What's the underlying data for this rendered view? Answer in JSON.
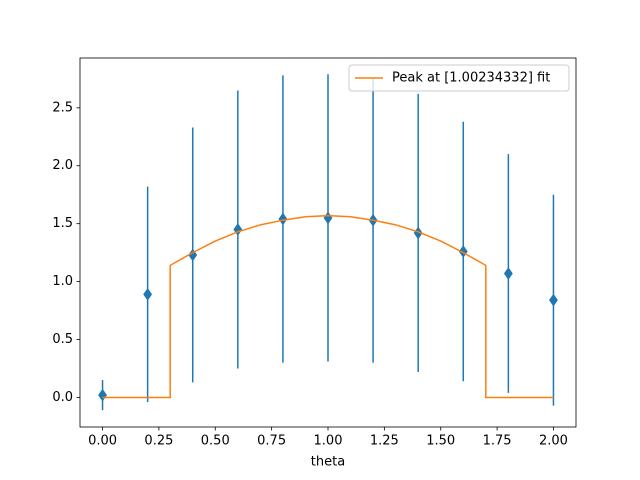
{
  "chart_data": {
    "type": "errorbar",
    "xlabel": "theta",
    "xlim": [
      -0.1,
      2.1
    ],
    "ylim": [
      -0.255,
      2.93
    ],
    "xticks": [
      {
        "value": 0,
        "label": "0.00"
      },
      {
        "value": 0.25,
        "label": "0.25"
      },
      {
        "value": 0.5,
        "label": "0.50"
      },
      {
        "value": 0.75,
        "label": "0.75"
      },
      {
        "value": 1,
        "label": "1.00"
      },
      {
        "value": 1.25,
        "label": "1.25"
      },
      {
        "value": 1.5,
        "label": "1.50"
      },
      {
        "value": 1.75,
        "label": "1.75"
      },
      {
        "value": 2,
        "label": "2.00"
      }
    ],
    "yticks": [
      {
        "value": 0,
        "label": "0.0"
      },
      0.5,
      {
        "value": 1,
        "label": "1.0"
      },
      1.5,
      {
        "value": 2,
        "label": "2.0"
      },
      2.5
    ],
    "legend": "upper right",
    "series": [
      {
        "type": "errorbar",
        "color": "#1f77b4",
        "x": [
          0,
          0.2,
          0.4,
          0.6,
          0.8,
          1.0,
          1.2,
          1.4,
          1.6,
          1.8,
          2.0
        ],
        "values": [
          0.02,
          0.89,
          1.23,
          1.45,
          1.54,
          1.55,
          1.53,
          1.42,
          1.26,
          1.07,
          0.84
        ],
        "errors": [
          0.13,
          0.93,
          1.1,
          1.2,
          1.24,
          1.24,
          1.23,
          1.2,
          1.12,
          1.03,
          0.91
        ]
      },
      {
        "type": "line",
        "name": "Peak at [1.00234332] fit",
        "color": "#ff7f0e",
        "x": [
          0,
          0.1,
          0.2,
          0.3,
          0.3,
          0.4,
          0.5,
          0.6,
          0.7,
          0.8,
          0.9,
          1.0,
          1.1,
          1.2,
          1.3,
          1.4,
          1.5,
          1.6,
          1.7,
          1.7,
          1.8,
          1.9,
          2.0
        ],
        "values": [
          0,
          0,
          0,
          0,
          1.14,
          1.25,
          1.35,
          1.43,
          1.49,
          1.53,
          1.56,
          1.57,
          1.56,
          1.53,
          1.49,
          1.43,
          1.35,
          1.25,
          1.14,
          0,
          0,
          0,
          0
        ]
      }
    ]
  }
}
